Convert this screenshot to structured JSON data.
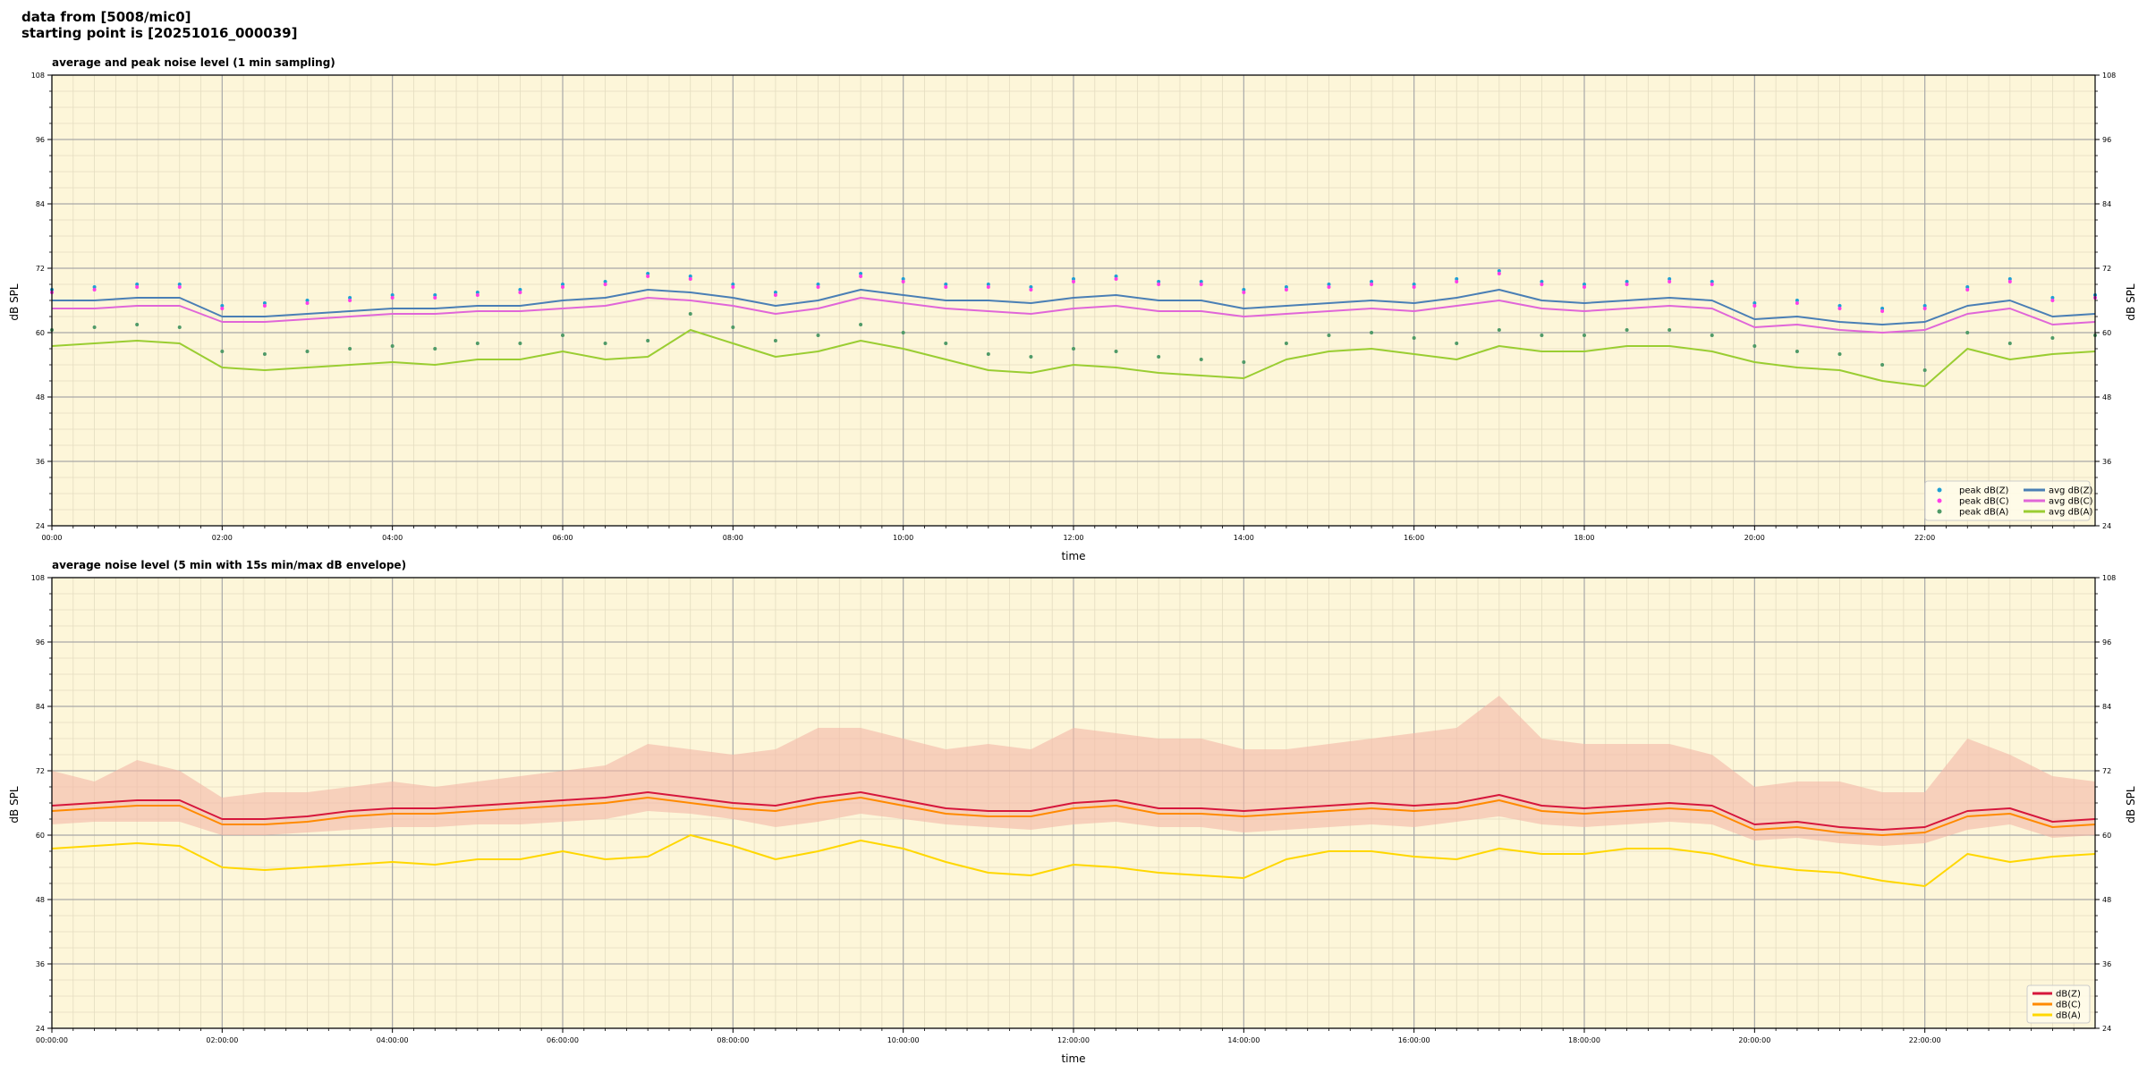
{
  "header": {
    "line1": "data from [5008/mic0]",
    "line2": "starting point is [20251016_000039]"
  },
  "chart_data": [
    {
      "type": "line",
      "title": "average and peak noise level (1 min sampling)",
      "xlabel": "time",
      "ylabel": "dB SPL",
      "ylim": [
        24,
        108
      ],
      "yticks": [
        "24",
        "36",
        "48",
        "60",
        "72",
        "84",
        "96",
        "108"
      ],
      "xlim_hours": [
        0,
        24
      ],
      "xticks": [
        "00:00",
        "02:00",
        "04:00",
        "06:00",
        "08:00",
        "10:00",
        "12:00",
        "14:00",
        "16:00",
        "18:00",
        "20:00",
        "22:00"
      ],
      "background": "#fdf6d9",
      "grid": true,
      "legend_placement": "lower-right",
      "legend_columns": 2,
      "x_hours": [
        0,
        0.5,
        1,
        1.5,
        2,
        2.5,
        3,
        3.5,
        4,
        4.5,
        5,
        5.5,
        6,
        6.5,
        7,
        7.5,
        8,
        8.5,
        9,
        9.5,
        10,
        10.5,
        11,
        11.5,
        12,
        12.5,
        13,
        13.5,
        14,
        14.5,
        15,
        15.5,
        16,
        16.5,
        17,
        17.5,
        18,
        18.5,
        19,
        19.5,
        20,
        20.5,
        21,
        21.5,
        22,
        22.5,
        23,
        23.5,
        24
      ],
      "series": [
        {
          "name": "avg dB(Z)",
          "kind": "line",
          "color": "#4a7fb5",
          "values": [
            66,
            66,
            66.5,
            66.5,
            63,
            63,
            63.5,
            64,
            64.5,
            64.5,
            65,
            65,
            66,
            66.5,
            68,
            67.5,
            66.5,
            65,
            66,
            68,
            67,
            66,
            66,
            65.5,
            66.5,
            67,
            66,
            66,
            64.5,
            65,
            65.5,
            66,
            65.5,
            66.5,
            68,
            66,
            65.5,
            66,
            66.5,
            66,
            62.5,
            63,
            62,
            61.5,
            62,
            65,
            66,
            63,
            63.5
          ]
        },
        {
          "name": "avg dB(C)",
          "kind": "line",
          "color": "#e066d8",
          "values": [
            64.5,
            64.5,
            65,
            65,
            62,
            62,
            62.5,
            63,
            63.5,
            63.5,
            64,
            64,
            64.5,
            65,
            66.5,
            66,
            65,
            63.5,
            64.5,
            66.5,
            65.5,
            64.5,
            64,
            63.5,
            64.5,
            65,
            64,
            64,
            63,
            63.5,
            64,
            64.5,
            64,
            65,
            66,
            64.5,
            64,
            64.5,
            65,
            64.5,
            61,
            61.5,
            60.5,
            60,
            60.5,
            63.5,
            64.5,
            61.5,
            62
          ]
        },
        {
          "name": "avg dB(A)",
          "kind": "line",
          "color": "#9acd32",
          "values": [
            57.5,
            58,
            58.5,
            58,
            53.5,
            53,
            53.5,
            54,
            54.5,
            54,
            55,
            55,
            56.5,
            55,
            55.5,
            60.5,
            58,
            55.5,
            56.5,
            58.5,
            57,
            55,
            53,
            52.5,
            54,
            53.5,
            52.5,
            52,
            51.5,
            55,
            56.5,
            57,
            56,
            55,
            57.5,
            56.5,
            56.5,
            57.5,
            57.5,
            56.5,
            54.5,
            53.5,
            53,
            51,
            50,
            57,
            55,
            56,
            56.5
          ]
        },
        {
          "name": "peak dB(Z)",
          "kind": "points",
          "color": "#1f9fd4",
          "values": [
            68,
            68.5,
            69,
            69,
            65,
            65.5,
            66,
            66.5,
            67,
            67,
            67.5,
            68,
            69,
            69.5,
            71,
            70.5,
            69,
            67.5,
            69,
            71,
            70,
            69,
            69,
            68.5,
            70,
            70.5,
            69.5,
            69.5,
            68,
            68.5,
            69,
            69.5,
            69,
            70,
            71.5,
            69.5,
            69,
            69.5,
            70,
            69.5,
            65.5,
            66,
            65,
            64.5,
            65,
            68.5,
            70,
            66.5,
            67
          ]
        },
        {
          "name": "peak dB(C)",
          "kind": "points",
          "color": "#ff3ee8",
          "values": [
            67.5,
            68,
            68.5,
            68.5,
            64.5,
            65,
            65.5,
            66,
            66.5,
            66.5,
            67,
            67.5,
            68.5,
            69,
            70.5,
            70,
            68.5,
            67,
            68.5,
            70.5,
            69.5,
            68.5,
            68.5,
            68,
            69.5,
            70,
            69,
            69,
            67.5,
            68,
            68.5,
            69,
            68.5,
            69.5,
            71,
            69,
            68.5,
            69,
            69.5,
            69,
            65,
            65.5,
            64.5,
            64,
            64.5,
            68,
            69.5,
            66,
            66.5
          ]
        },
        {
          "name": "peak dB(A)",
          "kind": "points",
          "color": "#4f9a68",
          "values": [
            60.5,
            61,
            61.5,
            61,
            56.5,
            56,
            56.5,
            57,
            57.5,
            57,
            58,
            58,
            59.5,
            58,
            58.5,
            63.5,
            61,
            58.5,
            59.5,
            61.5,
            60,
            58,
            56,
            55.5,
            57,
            56.5,
            55.5,
            55,
            54.5,
            58,
            59.5,
            60,
            59,
            58,
            60.5,
            59.5,
            59.5,
            60.5,
            60.5,
            59.5,
            57.5,
            56.5,
            56,
            54,
            53,
            60,
            58,
            59,
            59.5
          ]
        }
      ]
    },
    {
      "type": "line",
      "title": "average noise level (5 min with 15s min/max dB envelope)",
      "xlabel": "time",
      "ylabel": "dB SPL",
      "ylim": [
        24,
        108
      ],
      "yticks": [
        "24",
        "36",
        "48",
        "60",
        "72",
        "84",
        "96",
        "108"
      ],
      "xlim_hours": [
        0,
        24
      ],
      "xticks": [
        "00:00:00",
        "02:00:00",
        "04:00:00",
        "06:00:00",
        "08:00:00",
        "10:00:00",
        "12:00:00",
        "14:00:00",
        "16:00:00",
        "18:00:00",
        "20:00:00",
        "22:00:00"
      ],
      "background": "#fdf6d9",
      "grid": true,
      "legend_placement": "lower-right",
      "x_hours": [
        0,
        0.5,
        1,
        1.5,
        2,
        2.5,
        3,
        3.5,
        4,
        4.5,
        5,
        5.5,
        6,
        6.5,
        7,
        7.5,
        8,
        8.5,
        9,
        9.5,
        10,
        10.5,
        11,
        11.5,
        12,
        12.5,
        13,
        13.5,
        14,
        14.5,
        15,
        15.5,
        16,
        16.5,
        17,
        17.5,
        18,
        18.5,
        19,
        19.5,
        20,
        20.5,
        21,
        21.5,
        22,
        22.5,
        23,
        23.5,
        24
      ],
      "envelope": {
        "color": "#f4b8a6",
        "min": [
          62,
          62.5,
          62.5,
          62.5,
          60,
          60,
          60.5,
          61,
          61.5,
          61.5,
          62,
          62,
          62.5,
          63,
          64.5,
          64,
          63,
          61.5,
          62.5,
          64,
          63,
          62,
          61.5,
          61,
          62,
          62.5,
          61.5,
          61.5,
          60.5,
          61,
          61.5,
          62,
          61.5,
          62.5,
          63.5,
          62,
          61.5,
          62,
          62.5,
          62,
          59,
          59.5,
          58.5,
          58,
          58.5,
          61,
          62,
          59.5,
          60
        ],
        "max": [
          72,
          70,
          74,
          72,
          67,
          68,
          68,
          69,
          70,
          69,
          70,
          71,
          72,
          73,
          77,
          76,
          75,
          76,
          80,
          80,
          78,
          76,
          77,
          76,
          80,
          79,
          78,
          78,
          76,
          76,
          77,
          78,
          79,
          80,
          86,
          78,
          77,
          77,
          77,
          75,
          69,
          70,
          70,
          68,
          68,
          78,
          75,
          71,
          70
        ]
      },
      "series": [
        {
          "name": "dB(Z)",
          "color": "#d6173c",
          "values": [
            65.5,
            66,
            66.5,
            66.5,
            63,
            63,
            63.5,
            64.5,
            65,
            65,
            65.5,
            66,
            66.5,
            67,
            68,
            67,
            66,
            65.5,
            67,
            68,
            66.5,
            65,
            64.5,
            64.5,
            66,
            66.5,
            65,
            65,
            64.5,
            65,
            65.5,
            66,
            65.5,
            66,
            67.5,
            65.5,
            65,
            65.5,
            66,
            65.5,
            62,
            62.5,
            61.5,
            61,
            61.5,
            64.5,
            65,
            62.5,
            63
          ]
        },
        {
          "name": "dB(C)",
          "color": "#ff8a00",
          "values": [
            64.5,
            65,
            65.5,
            65.5,
            62,
            62,
            62.5,
            63.5,
            64,
            64,
            64.5,
            65,
            65.5,
            66,
            67,
            66,
            65,
            64.5,
            66,
            67,
            65.5,
            64,
            63.5,
            63.5,
            65,
            65.5,
            64,
            64,
            63.5,
            64,
            64.5,
            65,
            64.5,
            65,
            66.5,
            64.5,
            64,
            64.5,
            65,
            64.5,
            61,
            61.5,
            60.5,
            60,
            60.5,
            63.5,
            64,
            61.5,
            62
          ]
        },
        {
          "name": "dB(A)",
          "color": "#ffd700",
          "values": [
            57.5,
            58,
            58.5,
            58,
            54,
            53.5,
            54,
            54.5,
            55,
            54.5,
            55.5,
            55.5,
            57,
            55.5,
            56,
            60,
            58,
            55.5,
            57,
            59,
            57.5,
            55,
            53,
            52.5,
            54.5,
            54,
            53,
            52.5,
            52,
            55.5,
            57,
            57,
            56,
            55.5,
            57.5,
            56.5,
            56.5,
            57.5,
            57.5,
            56.5,
            54.5,
            53.5,
            53,
            51.5,
            50.5,
            56.5,
            55,
            56,
            56.5
          ]
        }
      ]
    }
  ]
}
